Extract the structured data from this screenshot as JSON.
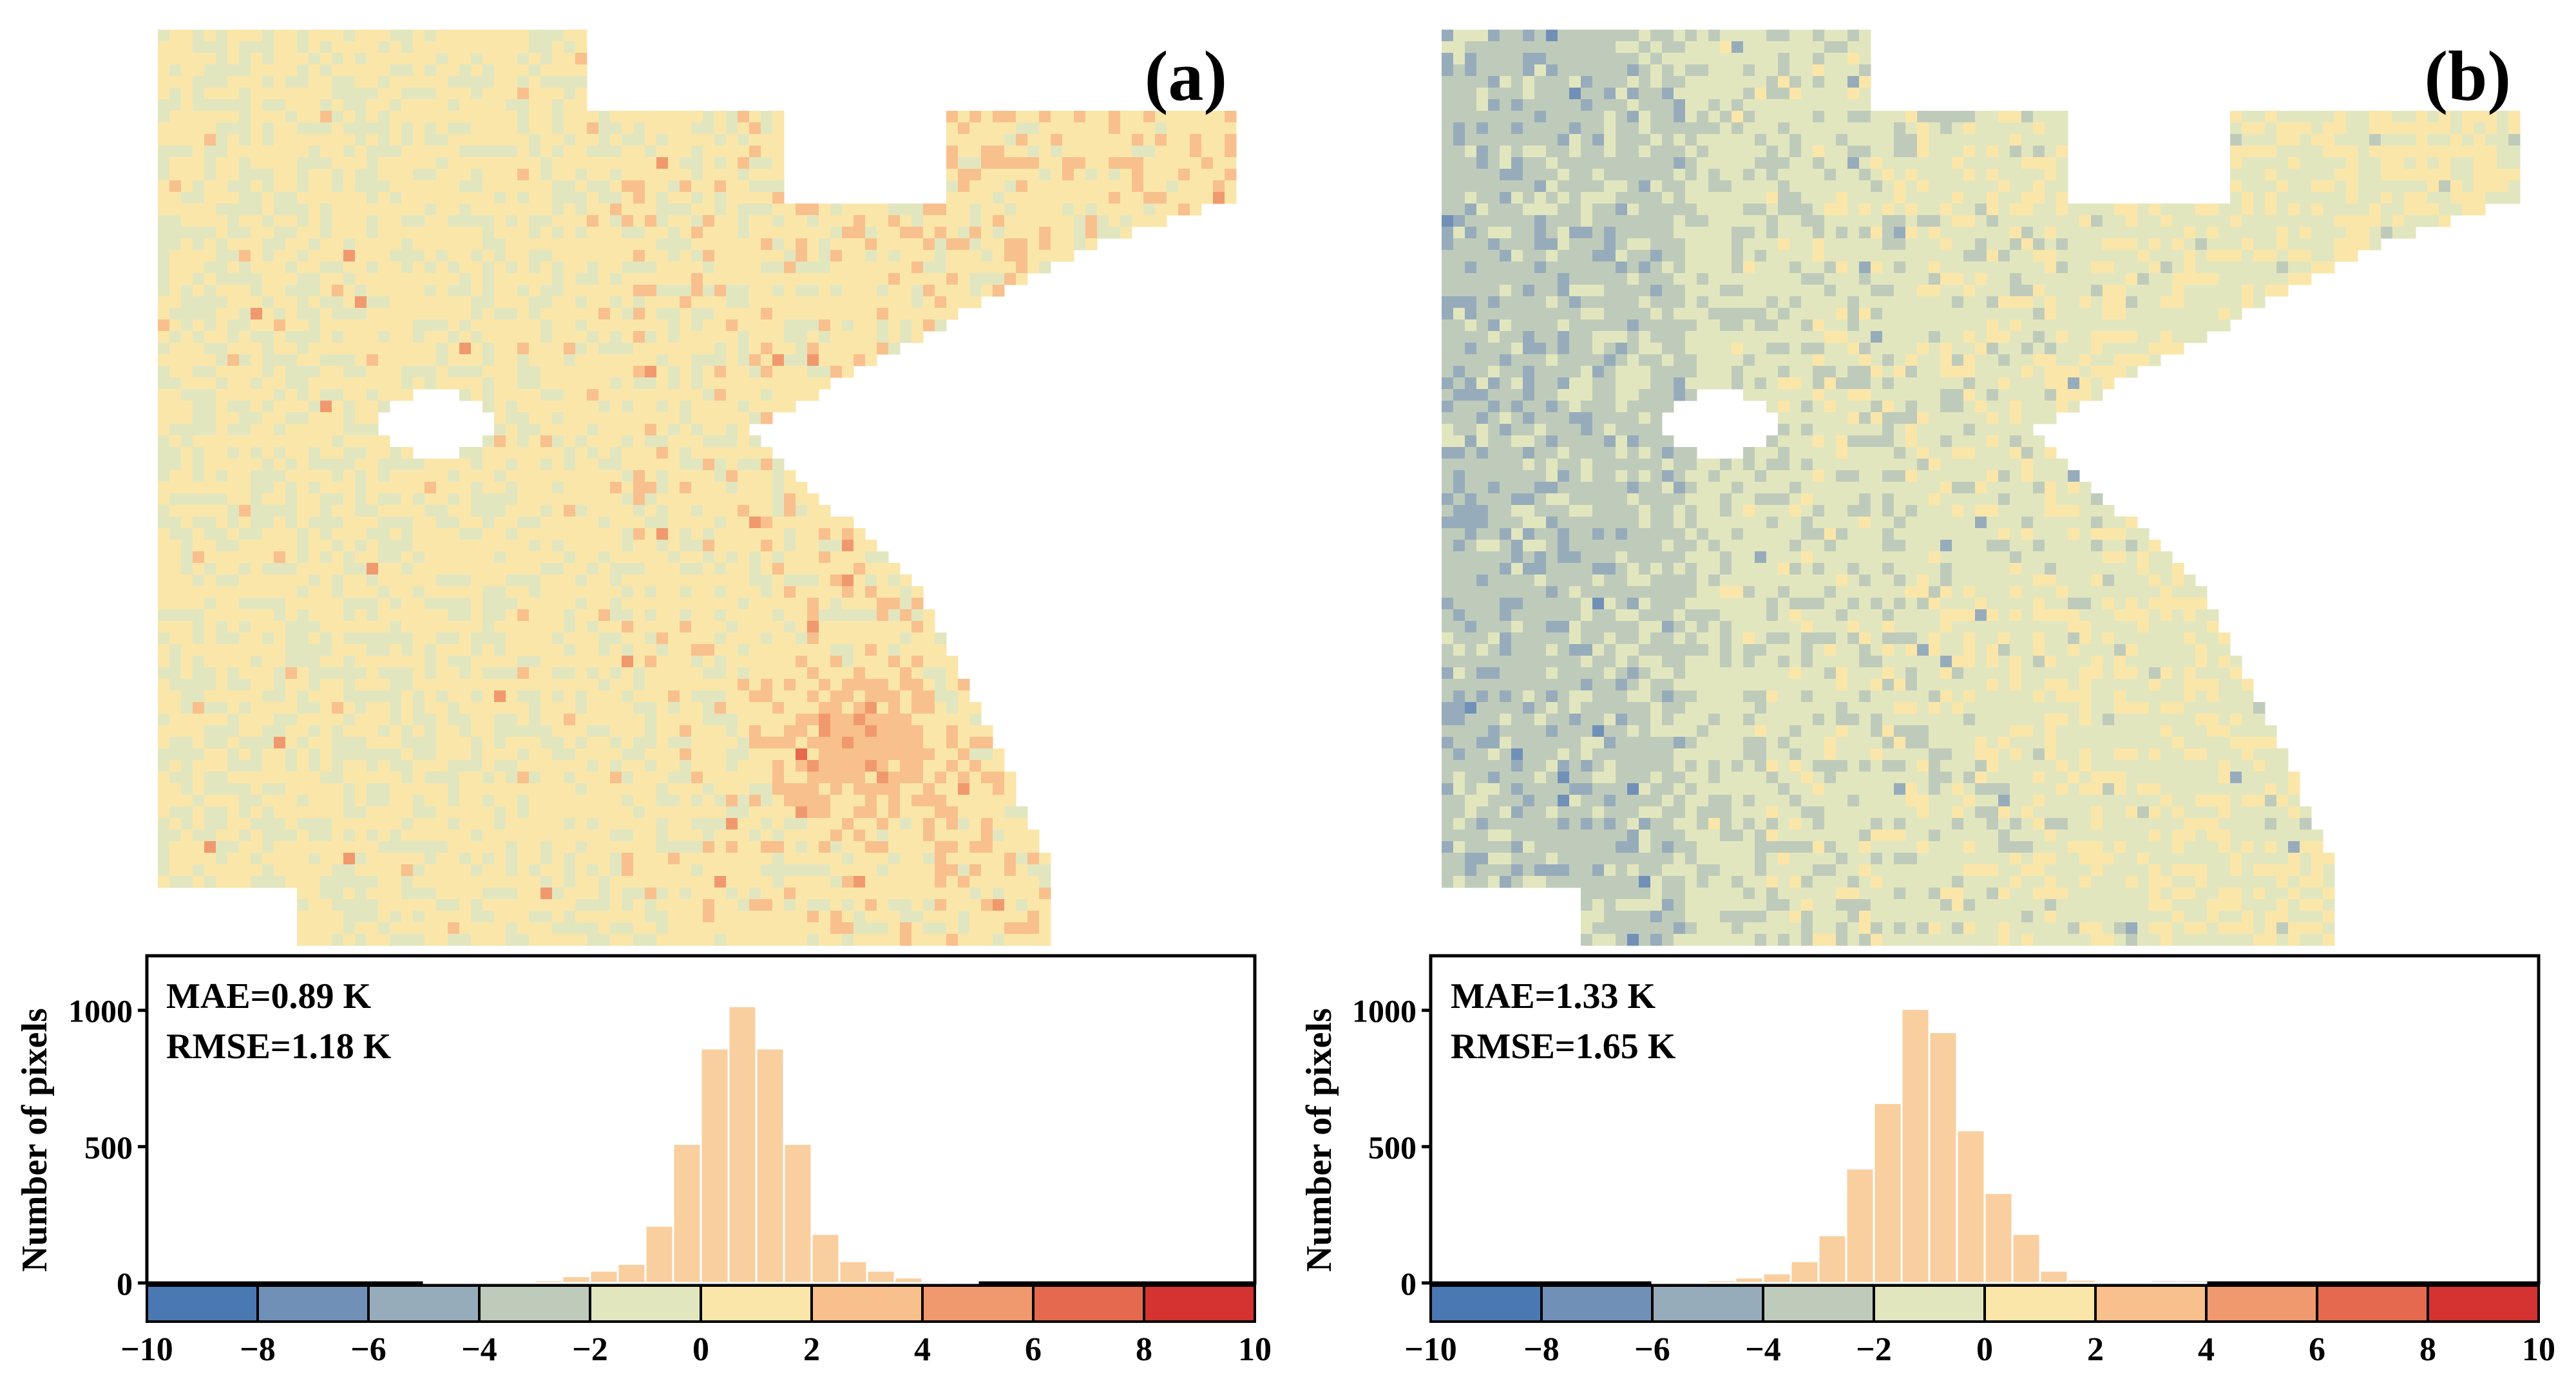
{
  "figure": {
    "colorbar_ticks": [
      "−10",
      "−8",
      "−6",
      "−4",
      "−2",
      "0",
      "2",
      "4",
      "6",
      "8",
      "10"
    ],
    "colorbar_colors": [
      "#4a78b3",
      "#7190b8",
      "#97acbb",
      "#bfcbba",
      "#e2e6bf",
      "#fbe6a9",
      "#f8c08c",
      "#f1996e",
      "#e5694e",
      "#d43331"
    ]
  },
  "chart_data": [
    {
      "type": "bar",
      "panel_label": "(a)",
      "ylabel": "Number of pixels",
      "yticks": [
        "0",
        "500",
        "1000"
      ],
      "ylim": [
        0,
        1200
      ],
      "xlim": [
        -10,
        10
      ],
      "bin_width": 0.5,
      "bin_start": -5,
      "values": [
        3,
        4,
        5,
        6,
        10,
        25,
        45,
        70,
        210,
        510,
        860,
        1015,
        860,
        510,
        180,
        80,
        45,
        20,
        8,
        4
      ],
      "stats": [
        "MAE=0.89 K",
        "RMSE=1.18 K"
      ],
      "bar_color": "#f9cf9f"
    },
    {
      "type": "bar",
      "panel_label": "(b)",
      "ylabel": "Number of pixels",
      "yticks": [
        "0",
        "500",
        "1000"
      ],
      "ylim": [
        0,
        1200
      ],
      "xlim": [
        -10,
        10
      ],
      "bin_width": 0.5,
      "bin_start": -6,
      "values": [
        4,
        6,
        10,
        20,
        35,
        80,
        175,
        420,
        660,
        1005,
        920,
        560,
        330,
        180,
        45,
        12,
        5,
        3,
        2,
        2
      ],
      "stats": [
        "MAE=1.33 K",
        "RMSE=1.65 K"
      ],
      "bar_color": "#f9cf9f"
    }
  ]
}
